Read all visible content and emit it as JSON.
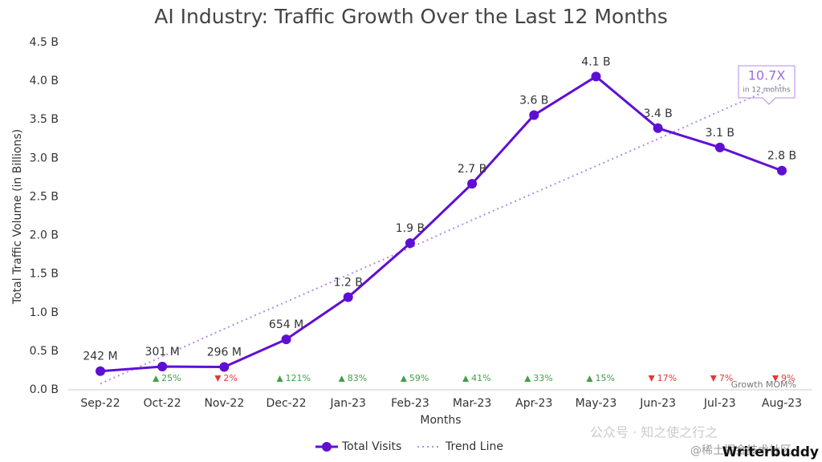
{
  "chart_data": {
    "type": "line",
    "title": "AI Industry: Traffic Growth Over the Last 12 Months",
    "x_label": "Months",
    "y_label": "Total Traffic Volume (in Billions)",
    "categories": [
      "Sep-22",
      "Oct-22",
      "Nov-22",
      "Dec-22",
      "Jan-23",
      "Feb-23",
      "Mar-23",
      "Apr-23",
      "May-23",
      "Jun-23",
      "Jul-23",
      "Aug-23"
    ],
    "series": [
      {
        "name": "Total Visits",
        "color": "#5f0fd4",
        "values": [
          0.242,
          0.301,
          0.296,
          0.654,
          1.2,
          1.9,
          2.67,
          3.56,
          4.06,
          3.39,
          3.14,
          2.84
        ],
        "value_labels": [
          "242 M",
          "301 M",
          "296 M",
          "654 M",
          "1.2 B",
          "1.9 B",
          "2.7 B",
          "3.6 B",
          "4.1 B",
          "3.4 B",
          "3.1 B",
          "2.8 B"
        ]
      },
      {
        "name": "Trend Line",
        "color": "#b48be8",
        "dashed": true,
        "values": [
          0.08,
          0.43,
          0.79,
          1.14,
          1.49,
          1.84,
          2.2,
          2.55,
          2.9,
          3.25,
          3.61,
          3.96
        ]
      }
    ],
    "growth": {
      "title": "Growth MOM%",
      "values": [
        null,
        25,
        -2,
        121,
        83,
        59,
        41,
        33,
        15,
        -17,
        -7,
        -9
      ],
      "value_labels": [
        null,
        "25%",
        "2%",
        "121%",
        "83%",
        "59%",
        "41%",
        "33%",
        "15%",
        "17%",
        "7%",
        "9%"
      ],
      "up_color": "#43a047",
      "down_color": "#e53935"
    },
    "annotation": {
      "text": "10.7X",
      "subtext": "in 12 months"
    },
    "ylim": [
      0,
      4.5
    ],
    "yticks": [
      {
        "value": 0,
        "label": "0.0 B"
      },
      {
        "value": 0.5,
        "label": "0.5 B"
      },
      {
        "value": 1,
        "label": "1.0 B"
      },
      {
        "value": 1.5,
        "label": "1.5 B"
      },
      {
        "value": 2,
        "label": "2.0 B"
      },
      {
        "value": 2.5,
        "label": "2.5 B"
      },
      {
        "value": 3,
        "label": "3.0 B"
      },
      {
        "value": 3.5,
        "label": "3.5 B"
      },
      {
        "value": 4,
        "label": "4.0 B"
      },
      {
        "value": 4.5,
        "label": "4.5 B"
      }
    ],
    "legend": "bottom",
    "brand": "Writerbuddy",
    "watermarks": [
      "公众号 · 知之使之行之",
      "@稀土掘金技术社区"
    ]
  }
}
